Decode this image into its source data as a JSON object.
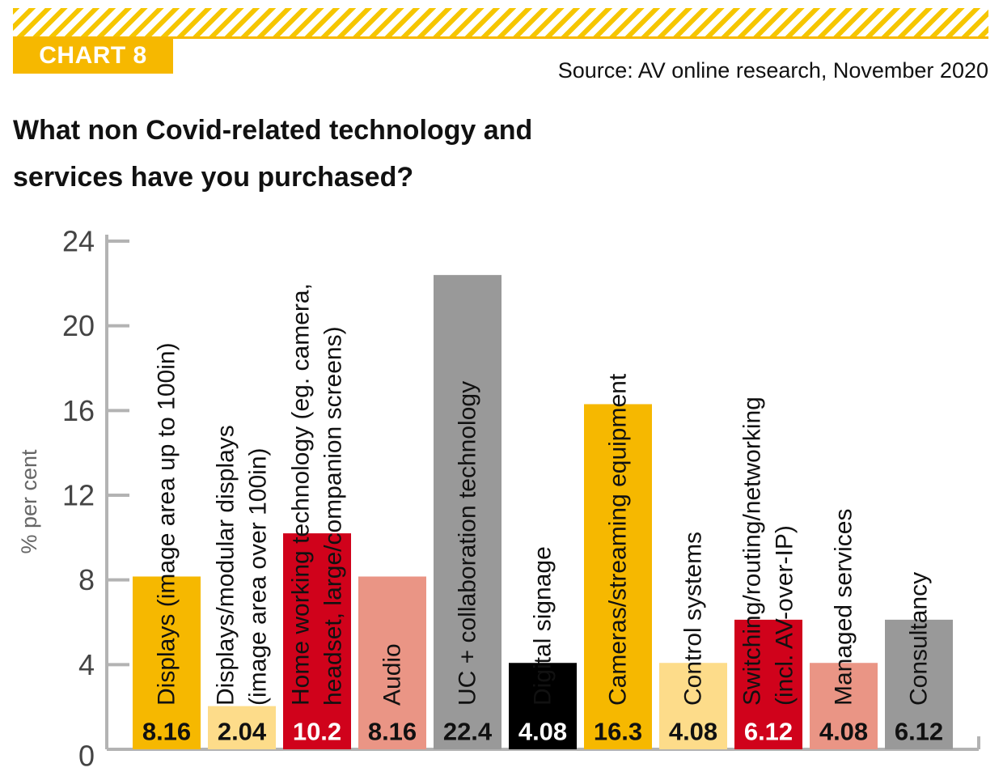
{
  "header": {
    "chart_label": "CHART 8",
    "source": "Source: AV online research, November 2020",
    "title_line1": "What non Covid-related technology and",
    "title_line2": "services have you purchased?"
  },
  "colors": {
    "accent": "#f6b800",
    "yellow": "#f6b800",
    "light_yellow": "#fddc8a",
    "red": "#d0021b",
    "salmon": "#ea9585",
    "grey": "#999999",
    "black": "#000000"
  },
  "chart_data": {
    "type": "bar",
    "title": "What non Covid-related technology and services have you purchased?",
    "xlabel": "",
    "ylabel": "% per cent",
    "ylim": [
      0,
      24
    ],
    "yticks": [
      0,
      4,
      8,
      12,
      16,
      20,
      24
    ],
    "categories": [
      [
        "Displays (image area up to 100in)"
      ],
      [
        "Displays/modular displays",
        "(image area over 100in)"
      ],
      [
        "Home working technology (eg. camera,",
        "headset, large/companion screens)"
      ],
      [
        "Audio"
      ],
      [
        "UC + collaboration technology"
      ],
      [
        "Digital signage"
      ],
      [
        "Cameras/streaming equipment"
      ],
      [
        "Control systems"
      ],
      [
        "Switching/routing/networking",
        "(incl. AV-over-IP)"
      ],
      [
        "Managed services"
      ],
      [
        "Consultancy"
      ]
    ],
    "values": [
      8.16,
      2.04,
      10.2,
      8.16,
      22.4,
      4.08,
      16.3,
      4.08,
      6.12,
      4.08,
      6.12
    ],
    "value_labels": [
      "8.16",
      "2.04",
      "10.2",
      "8.16",
      "22.4",
      "4.08",
      "16.3",
      "4.08",
      "6.12",
      "4.08",
      "6.12"
    ],
    "bar_colors": [
      "#f6b800",
      "#fddc8a",
      "#d0021b",
      "#ea9585",
      "#999999",
      "#000000",
      "#f6b800",
      "#fddc8a",
      "#d0021b",
      "#ea9585",
      "#999999"
    ],
    "value_label_colors": [
      "#111111",
      "#111111",
      "#ffffff",
      "#111111",
      "#111111",
      "#ffffff",
      "#111111",
      "#111111",
      "#ffffff",
      "#111111",
      "#111111"
    ]
  }
}
